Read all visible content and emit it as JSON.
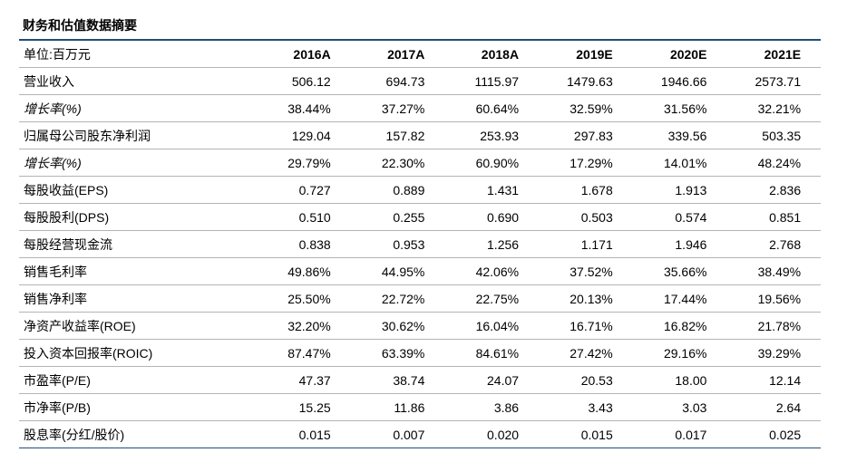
{
  "title": "财务和估值数据摘要",
  "header": {
    "unit_label": "单位:百万元",
    "years": [
      "2016A",
      "2017A",
      "2018A",
      "2019E",
      "2020E",
      "2021E"
    ]
  },
  "rows": [
    {
      "label": "营业收入",
      "italic": false,
      "values": [
        "506.12",
        "694.73",
        "1115.97",
        "1479.63",
        "1946.66",
        "2573.71"
      ]
    },
    {
      "label": "增长率(%)",
      "italic": true,
      "values": [
        "38.44%",
        "37.27%",
        "60.64%",
        "32.59%",
        "31.56%",
        "32.21%"
      ]
    },
    {
      "label": "归属母公司股东净利润",
      "italic": false,
      "values": [
        "129.04",
        "157.82",
        "253.93",
        "297.83",
        "339.56",
        "503.35"
      ]
    },
    {
      "label": "增长率(%)",
      "italic": true,
      "values": [
        "29.79%",
        "22.30%",
        "60.90%",
        "17.29%",
        "14.01%",
        "48.24%"
      ]
    },
    {
      "label": "每股收益(EPS)",
      "italic": false,
      "values": [
        "0.727",
        "0.889",
        "1.431",
        "1.678",
        "1.913",
        "2.836"
      ]
    },
    {
      "label": "每股股利(DPS)",
      "italic": false,
      "values": [
        "0.510",
        "0.255",
        "0.690",
        "0.503",
        "0.574",
        "0.851"
      ]
    },
    {
      "label": "每股经营现金流",
      "italic": false,
      "values": [
        "0.838",
        "0.953",
        "1.256",
        "1.171",
        "1.946",
        "2.768"
      ]
    },
    {
      "label": "销售毛利率",
      "italic": false,
      "values": [
        "49.86%",
        "44.95%",
        "42.06%",
        "37.52%",
        "35.66%",
        "38.49%"
      ]
    },
    {
      "label": "销售净利率",
      "italic": false,
      "values": [
        "25.50%",
        "22.72%",
        "22.75%",
        "20.13%",
        "17.44%",
        "19.56%"
      ]
    },
    {
      "label": "净资产收益率(ROE)",
      "italic": false,
      "values": [
        "32.20%",
        "30.62%",
        "16.04%",
        "16.71%",
        "16.82%",
        "21.78%"
      ]
    },
    {
      "label": "投入资本回报率(ROIC)",
      "italic": false,
      "values": [
        "87.47%",
        "63.39%",
        "84.61%",
        "27.42%",
        "29.16%",
        "39.29%"
      ]
    },
    {
      "label": "市盈率(P/E)",
      "italic": false,
      "values": [
        "47.37",
        "38.74",
        "24.07",
        "20.53",
        "18.00",
        "12.14"
      ]
    },
    {
      "label": "市净率(P/B)",
      "italic": false,
      "values": [
        "15.25",
        "11.86",
        "3.86",
        "3.43",
        "3.03",
        "2.64"
      ]
    },
    {
      "label": "股息率(分红/股价)",
      "italic": false,
      "values": [
        "0.015",
        "0.007",
        "0.020",
        "0.015",
        "0.017",
        "0.025"
      ]
    }
  ]
}
